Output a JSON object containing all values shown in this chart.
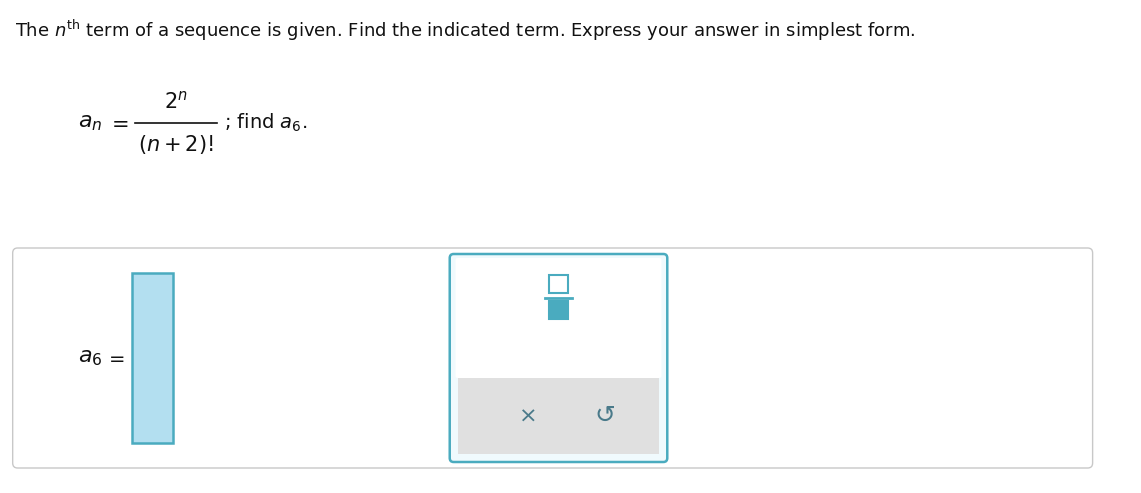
{
  "bg_color": "#ffffff",
  "title_text": "The $n^{\\mathrm{th}}$ term of a sequence is given. Find the indicated term. Express your answer in simplest form.",
  "input_box_color": "#b3dff0",
  "input_box_border": "#4aabbf",
  "fraction_box_border": "#4aabbf",
  "fraction_box_bg": "#f0fafd",
  "fraction_symbol_color": "#4aabbf",
  "bottom_panel_color": "#e0e0e0",
  "outer_rect_color": "#cccccc",
  "x_color": "#4a7a8a",
  "undo_color": "#4a7a8a",
  "title_fontsize": 13,
  "formula_fontsize": 15
}
